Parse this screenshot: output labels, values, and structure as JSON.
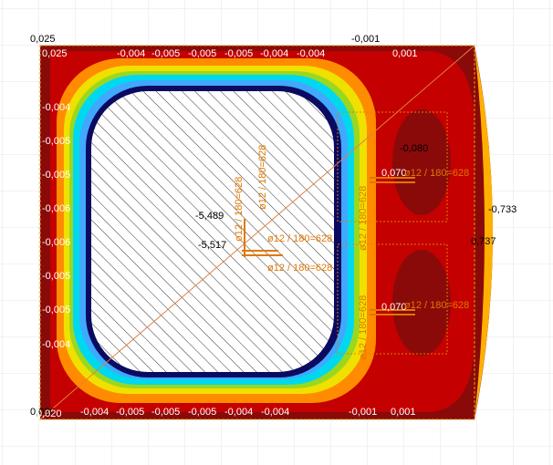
{
  "corner_values": {
    "top_left": "0,025",
    "top_left_inner": "0,025",
    "top_right": "-0,001",
    "top_right_inner": "0,001",
    "bottom_left": "0,020",
    "bottom_left_inner": "0,020"
  },
  "edge_values": {
    "top": [
      "-0,004",
      "-0,005",
      "-0,005",
      "-0,005",
      "-0,004",
      "-0,004"
    ],
    "left": [
      "-0,004",
      "-0,005",
      "-0,005",
      "-0,006",
      "-0,006",
      "-0,005",
      "-0,005",
      "-0,004"
    ],
    "bottom": [
      "-0,004",
      "-0,005",
      "-0,005",
      "-0,005",
      "-0,004",
      "-0,004",
      "-0,001",
      "0,001"
    ]
  },
  "center_values": [
    "-5,489",
    "-5,517"
  ],
  "right_values": [
    "-0,733",
    "0,737"
  ],
  "pile_values": [
    "-0,080",
    "0,070",
    "0,070"
  ],
  "rebar_labels": [
    "ø12 / 180=628",
    "ø12 / 180=628",
    "ø12 / 180=628",
    "ø12 / 180=628",
    "ø12 / 180=628",
    "ø12 / 180=628",
    "ø12 / 180=628",
    "ø12 / 180=628"
  ]
}
